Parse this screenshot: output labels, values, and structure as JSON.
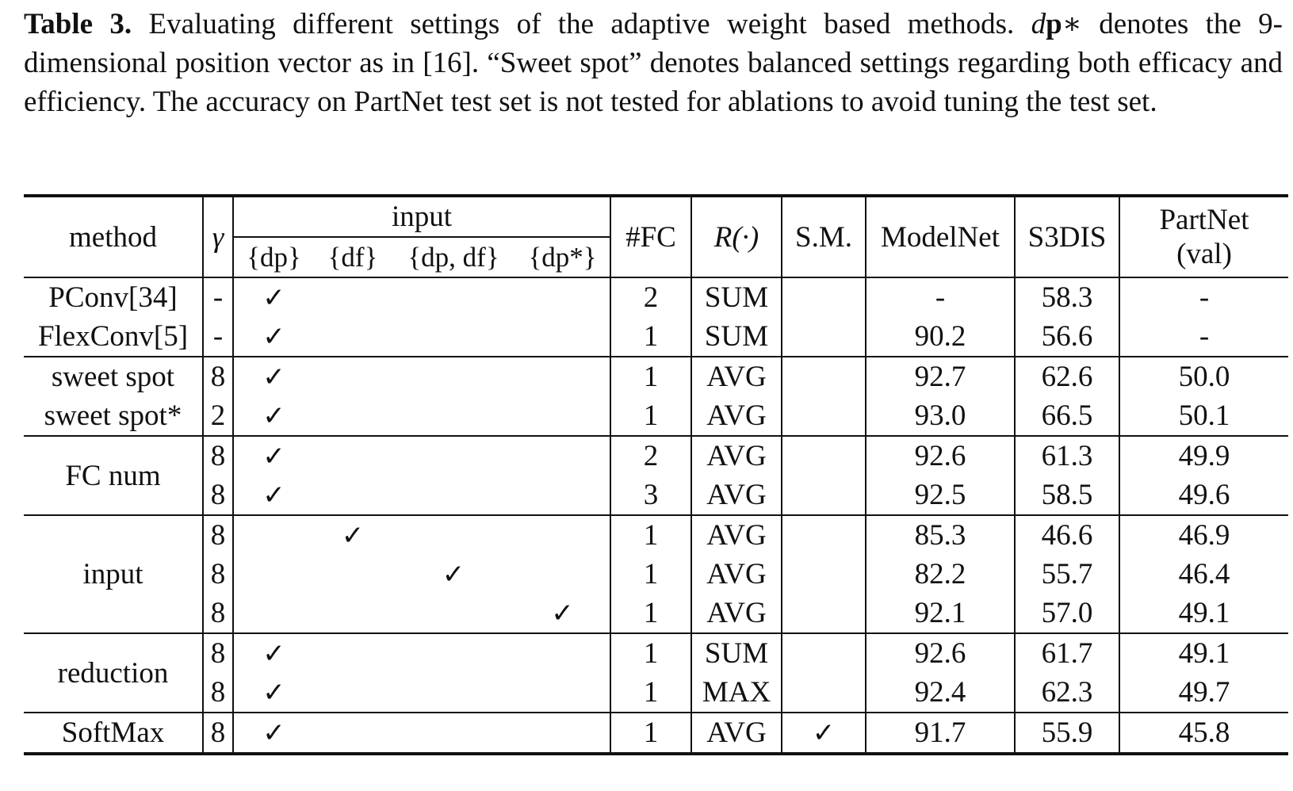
{
  "caption": {
    "label": "Table 3.",
    "text_1": " Evaluating different settings of the adaptive weight based methods. ",
    "dp_d": "d",
    "dp_p": "p",
    "dp_star": "∗",
    "text_2": " denotes the 9-dimensional position vector as in [16]. “Sweet spot” denotes balanced settings regarding both efficacy and efficiency. The accuracy on PartNet test set is not tested for ablations to avoid tuning the test set."
  },
  "table": {
    "headers": {
      "method": "method",
      "gamma": "γ",
      "input": "input",
      "input_sub": [
        "{dp}",
        "{df}",
        "{dp, df}",
        "{dp*}"
      ],
      "fc": "#FC",
      "reduction": "R(·)",
      "sm": "S.M.",
      "modelnet": "ModelNet",
      "s3dis": "S3DIS",
      "partnet_1": "PartNet",
      "partnet_2": "(val)"
    },
    "groups": [
      {
        "label": "PConv[34]",
        "gamma": "-",
        "input_col": 0,
        "fc": "2",
        "red": "SUM",
        "sm": "",
        "modelnet": "-",
        "s3dis": "58.3",
        "partnet": "-"
      },
      {
        "label": "FlexConv[5]",
        "gamma": "-",
        "input_col": 0,
        "fc": "1",
        "red": "SUM",
        "sm": "",
        "modelnet": "90.2",
        "s3dis": "56.6",
        "partnet": "-"
      },
      {
        "label": "sweet spot",
        "gamma": "8",
        "input_col": 0,
        "fc": "1",
        "red": "AVG",
        "sm": "",
        "modelnet": "92.7",
        "s3dis": "62.6",
        "partnet": "50.0"
      },
      {
        "label": "sweet spot*",
        "gamma": "2",
        "input_col": 0,
        "fc": "1",
        "red": "AVG",
        "sm": "",
        "modelnet": "93.0",
        "s3dis": "66.5",
        "partnet": "50.1"
      },
      {
        "label": "FC num",
        "gamma": "8",
        "input_col": 0,
        "fc": "2",
        "red": "AVG",
        "sm": "",
        "modelnet": "92.6",
        "s3dis": "61.3",
        "partnet": "49.9"
      },
      {
        "label": "",
        "gamma": "8",
        "input_col": 0,
        "fc": "3",
        "red": "AVG",
        "sm": "",
        "modelnet": "92.5",
        "s3dis": "58.5",
        "partnet": "49.6"
      },
      {
        "label": "input",
        "gamma": "8",
        "input_col": 1,
        "fc": "1",
        "red": "AVG",
        "sm": "",
        "modelnet": "85.3",
        "s3dis": "46.6",
        "partnet": "46.9"
      },
      {
        "label": "",
        "gamma": "8",
        "input_col": 2,
        "fc": "1",
        "red": "AVG",
        "sm": "",
        "modelnet": "82.2",
        "s3dis": "55.7",
        "partnet": "46.4"
      },
      {
        "label": "",
        "gamma": "8",
        "input_col": 3,
        "fc": "1",
        "red": "AVG",
        "sm": "",
        "modelnet": "92.1",
        "s3dis": "57.0",
        "partnet": "49.1"
      },
      {
        "label": "reduction",
        "gamma": "8",
        "input_col": 0,
        "fc": "1",
        "red": "SUM",
        "sm": "",
        "modelnet": "92.6",
        "s3dis": "61.7",
        "partnet": "49.1"
      },
      {
        "label": "",
        "gamma": "8",
        "input_col": 0,
        "fc": "1",
        "red": "MAX",
        "sm": "",
        "modelnet": "92.4",
        "s3dis": "62.3",
        "partnet": "49.7"
      },
      {
        "label": "SoftMax",
        "gamma": "8",
        "input_col": 0,
        "fc": "1",
        "red": "AVG",
        "sm": "✓",
        "modelnet": "91.7",
        "s3dis": "55.9",
        "partnet": "45.8"
      }
    ],
    "check": "✓"
  }
}
